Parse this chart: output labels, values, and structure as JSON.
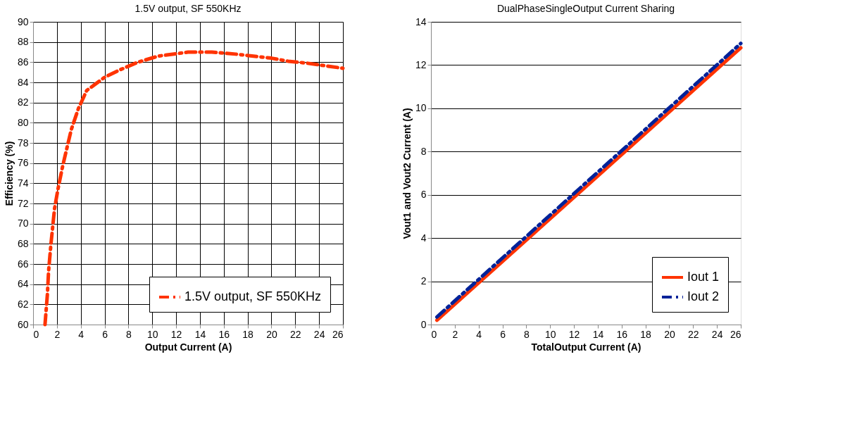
{
  "chart_data": [
    {
      "type": "line",
      "title": "1.5V output, SF 550KHz",
      "xlabel": "Output Current (A)",
      "ylabel": "Efficiency (%)",
      "xlim": [
        0,
        26
      ],
      "ylim": [
        60,
        90
      ],
      "xticks": [
        0,
        2,
        4,
        6,
        8,
        10,
        12,
        14,
        16,
        18,
        20,
        22,
        24,
        26
      ],
      "yticks": [
        60,
        62,
        64,
        66,
        68,
        70,
        72,
        74,
        76,
        78,
        80,
        82,
        84,
        86,
        88,
        90
      ],
      "grid": true,
      "legend": "bottom right",
      "line_style": "dashed",
      "series": [
        {
          "name": "1.5V output, SF 550KHz",
          "color": "#ff3300",
          "x": [
            1.0,
            1.2,
            1.3,
            1.5,
            1.8,
            2.1,
            2.5,
            3.2,
            3.8,
            4.5,
            6.0,
            7.2,
            8.8,
            10.5,
            13.0,
            15.0,
            17.0,
            20.0,
            21.4,
            23.0,
            26.0
          ],
          "values": [
            60,
            63,
            65.3,
            68,
            71.5,
            73.5,
            75.8,
            79.3,
            81.4,
            83.2,
            84.5,
            85.2,
            86,
            86.6,
            87,
            87,
            86.8,
            86.4,
            86.1,
            85.9,
            85.4
          ]
        }
      ]
    },
    {
      "type": "line",
      "title": "DualPhaseSingleOutput Current Sharing",
      "xlabel": "TotalOutput Current (A)",
      "ylabel": "Vout1 and Vout2 Current (A)",
      "xlim": [
        0,
        26
      ],
      "ylim": [
        0,
        14
      ],
      "xticks": [
        0,
        2,
        4,
        6,
        8,
        10,
        12,
        14,
        16,
        18,
        20,
        22,
        24,
        26
      ],
      "yticks": [
        0,
        2,
        4,
        6,
        8,
        10,
        12,
        14
      ],
      "grid": "y",
      "legend": "bottom right",
      "series": [
        {
          "name": "Iout 1",
          "color": "#ff3300",
          "line_style": "solid",
          "x": [
            0.5,
            26
          ],
          "values": [
            0.2,
            12.8
          ]
        },
        {
          "name": "Iout 2",
          "color": "#002299",
          "line_style": "dashed",
          "x": [
            0.5,
            26
          ],
          "values": [
            0.35,
            13.0
          ]
        }
      ]
    }
  ]
}
